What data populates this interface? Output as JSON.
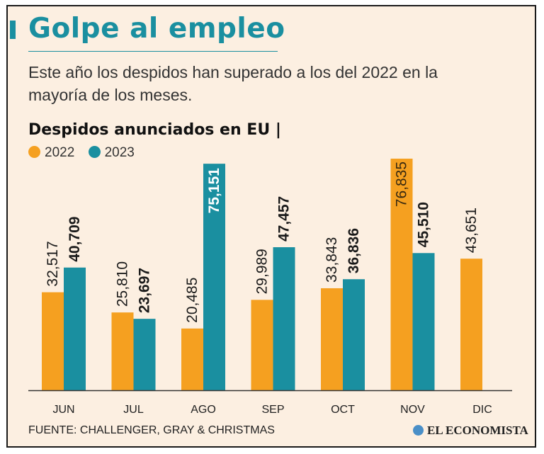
{
  "header": {
    "title": "Golpe al empleo",
    "subtitle": "Este año los despidos han superado a los del 2022 en la mayoría de los meses."
  },
  "chart_title": "Despidos anunciados en EU |",
  "legend": [
    {
      "label": "2022",
      "color": "#f5a020"
    },
    {
      "label": "2023",
      "color": "#1a8fa0"
    }
  ],
  "source": "FUENTE: CHALLENGER, GRAY & CHRISTMAS",
  "logo": "EL ECONOMISTA",
  "chart_data": {
    "type": "bar",
    "categories": [
      "JUN",
      "JUL",
      "AGO",
      "SEP",
      "OCT",
      "NOV",
      "DIC"
    ],
    "series": [
      {
        "name": "2022",
        "color": "#f5a020",
        "values": [
          32517,
          25810,
          20485,
          29989,
          33843,
          76835,
          43651
        ],
        "labels": [
          "32,517",
          "25,810",
          "20,485",
          "29,989",
          "33,843",
          "76,835",
          "43,651"
        ]
      },
      {
        "name": "2023",
        "color": "#1a8fa0",
        "values": [
          40709,
          23697,
          75151,
          47457,
          36836,
          45510,
          null
        ],
        "labels": [
          "40,709",
          "23,697",
          "75,151",
          "47,457",
          "36,836",
          "45,510",
          null
        ]
      }
    ],
    "title": "Despidos anunciados en EU",
    "xlabel": "",
    "ylabel": "",
    "ylim": [
      0,
      76835
    ],
    "grid": false
  }
}
